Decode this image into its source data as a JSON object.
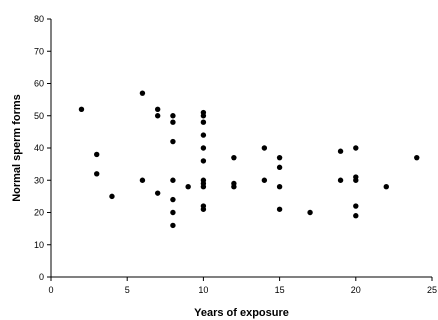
{
  "chart_data": {
    "type": "scatter",
    "title": "",
    "xlabel": "Years of exposure",
    "ylabel": "Normal sperm forms",
    "xlim": [
      0,
      25
    ],
    "ylim": [
      0,
      80
    ],
    "x_ticks": [
      0,
      5,
      10,
      15,
      20,
      25
    ],
    "x_tick_labels": [
      "0",
      "5",
      "10",
      "15",
      "20",
      "25"
    ],
    "y_ticks": [
      0,
      10,
      20,
      30,
      40,
      50,
      60,
      70,
      80
    ],
    "y_tick_labels": [
      "0",
      "10",
      "20",
      "30",
      "40",
      "50",
      "60",
      "70",
      "80"
    ],
    "grid": false,
    "legend": "none",
    "marker_color": "#000000",
    "series": [
      {
        "points": [
          [
            2,
            52
          ],
          [
            3,
            38
          ],
          [
            3,
            32
          ],
          [
            4,
            25
          ],
          [
            6,
            57
          ],
          [
            6,
            30
          ],
          [
            7,
            52
          ],
          [
            7,
            50
          ],
          [
            7,
            26
          ],
          [
            8,
            50
          ],
          [
            8,
            48
          ],
          [
            8,
            42
          ],
          [
            8,
            30
          ],
          [
            8,
            24
          ],
          [
            8,
            20
          ],
          [
            8,
            16
          ],
          [
            9,
            28
          ],
          [
            10,
            51
          ],
          [
            10,
            50
          ],
          [
            10,
            48
          ],
          [
            10,
            44
          ],
          [
            10,
            40
          ],
          [
            10,
            36
          ],
          [
            10,
            30
          ],
          [
            10,
            29
          ],
          [
            10,
            28
          ],
          [
            10,
            22
          ],
          [
            10,
            21
          ],
          [
            12,
            37
          ],
          [
            12,
            29
          ],
          [
            12,
            28
          ],
          [
            14,
            40
          ],
          [
            14,
            30
          ],
          [
            15,
            37
          ],
          [
            15,
            34
          ],
          [
            15,
            28
          ],
          [
            15,
            21
          ],
          [
            17,
            20
          ],
          [
            19,
            39
          ],
          [
            19,
            30
          ],
          [
            20,
            40
          ],
          [
            20,
            31
          ],
          [
            20,
            30
          ],
          [
            20,
            22
          ],
          [
            20,
            19
          ],
          [
            22,
            28
          ],
          [
            24,
            37
          ]
        ]
      }
    ]
  }
}
